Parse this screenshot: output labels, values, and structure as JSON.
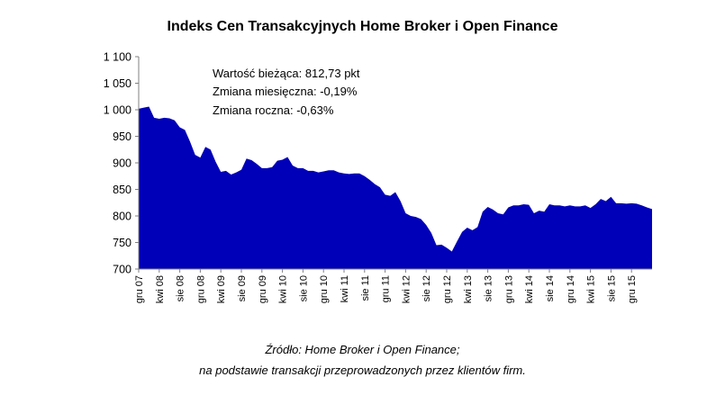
{
  "chart_data": {
    "type": "area",
    "title": "Indeks Cen Transakcyjnych Home Broker i Open Finance",
    "xlabel": "",
    "ylabel": "",
    "ylim": [
      700,
      1100
    ],
    "yticks": [
      "1 100",
      "1 050",
      "1 000",
      "950",
      "900",
      "850",
      "800",
      "750",
      "700"
    ],
    "xticks": [
      "gru 07",
      "kwi 08",
      "sie 08",
      "gru 08",
      "kwi 09",
      "sie 09",
      "gru 09",
      "kwi 10",
      "sie 10",
      "gru 10",
      "kwi 11",
      "sie 11",
      "gru 11",
      "kwi 12",
      "sie 12",
      "gru 12",
      "kwi 13",
      "sie 13",
      "gru 13",
      "kwi 14",
      "sie 14",
      "gru 14",
      "kwi 15",
      "sie 15",
      "gru 15"
    ],
    "grid": false,
    "legend": "none",
    "fill_color": "#0000b8",
    "series": [
      {
        "values": [
          1002,
          1004,
          1006,
          985,
          983,
          985,
          984,
          980,
          967,
          962,
          940,
          915,
          910,
          930,
          925,
          902,
          883,
          885,
          878,
          882,
          887,
          908,
          905,
          898,
          890,
          890,
          892,
          904,
          906,
          911,
          895,
          890,
          890,
          885,
          885,
          882,
          884,
          886,
          886,
          882,
          880,
          879,
          880,
          880,
          875,
          868,
          860,
          854,
          840,
          838,
          845,
          828,
          805,
          800,
          798,
          794,
          783,
          768,
          745,
          746,
          740,
          733,
          752,
          770,
          778,
          773,
          779,
          808,
          817,
          812,
          805,
          803,
          816,
          820,
          820,
          822,
          821,
          805,
          810,
          808,
          822,
          820,
          820,
          818,
          820,
          818,
          818,
          820,
          815,
          822,
          832,
          828,
          836,
          824,
          824,
          823,
          824,
          823,
          820,
          816,
          813
        ]
      }
    ],
    "annotations": [
      "Wartość bieżąca: 812,73 pkt",
      "Zmiana miesięczna: -0,19%",
      "Zmiana roczna: -0,63%"
    ]
  },
  "source_line_1": "Źródło: Home Broker i Open Finance;",
  "source_line_2": "na podstawie transakcji przeprowadzonych przez klientów firm."
}
